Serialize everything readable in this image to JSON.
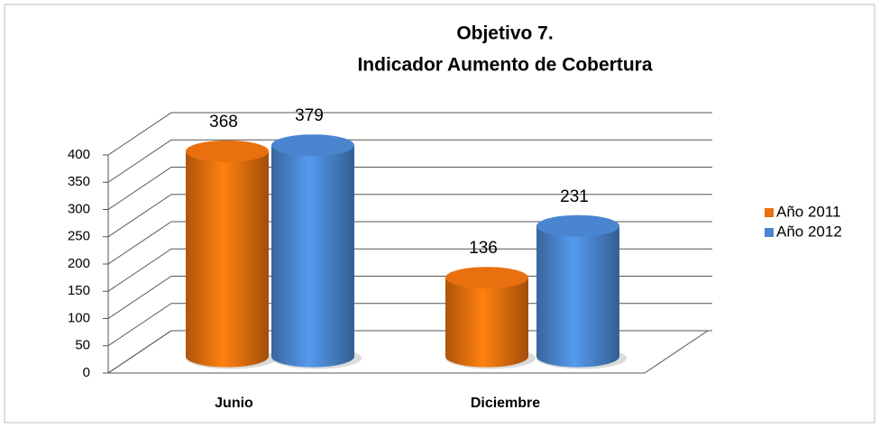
{
  "chart_data": {
    "type": "bar3d",
    "title": "Objetivo 7.",
    "subtitle": "Indicador  Aumento de Cobertura",
    "categories": [
      "Junio",
      "Diciembre"
    ],
    "series": [
      {
        "name": "Año 2011",
        "color": "#e8700e",
        "values": [
          368,
          136
        ]
      },
      {
        "name": "Año 2012",
        "color": "#4a86d0",
        "values": [
          379,
          231
        ]
      }
    ],
    "ylim": [
      0,
      400
    ],
    "yticks": [
      0,
      50,
      100,
      150,
      200,
      250,
      300,
      350,
      400
    ],
    "grid": true,
    "legend": "right"
  }
}
